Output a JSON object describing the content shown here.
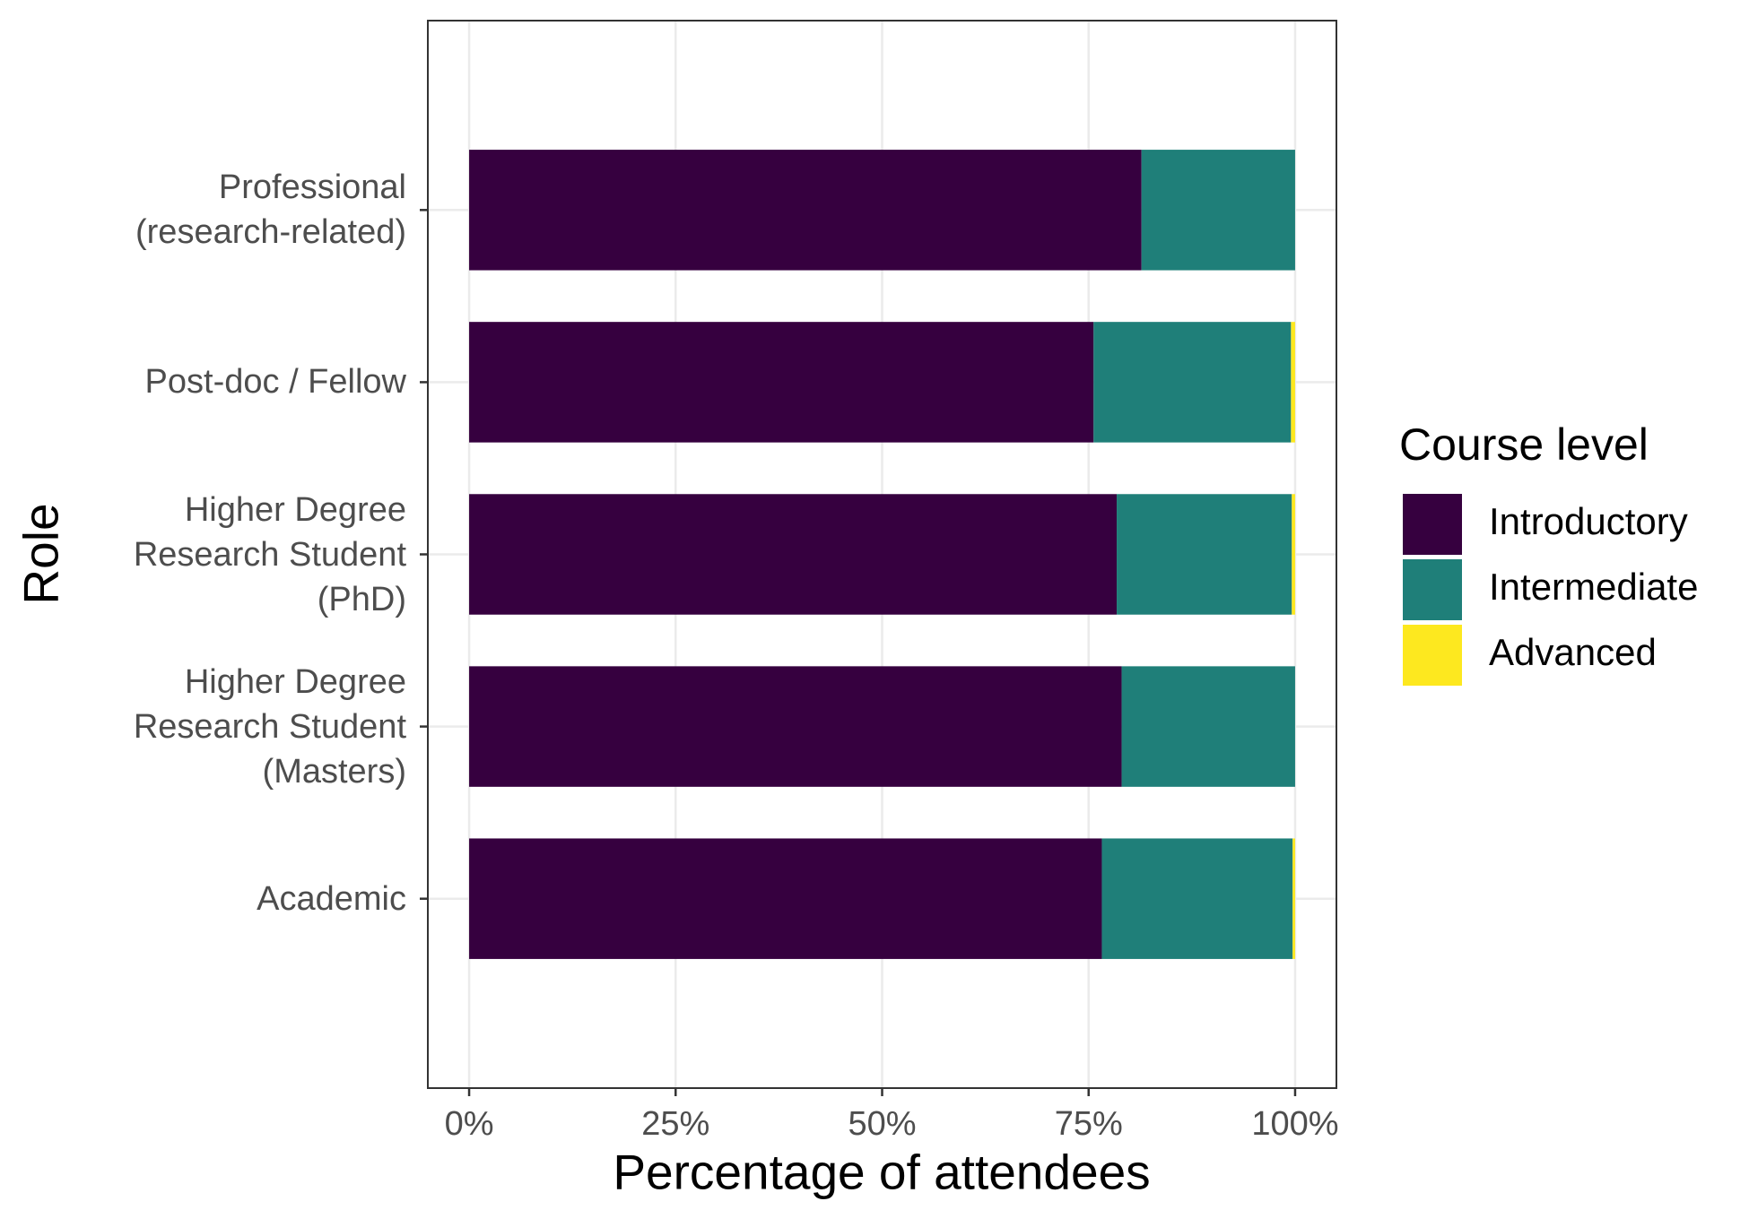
{
  "chart_data": {
    "type": "stacked-barh",
    "x_label": "Percentage of attendees",
    "y_label": "Role",
    "legend_title": "Course level",
    "categories": [
      "Professional\n(research-related)",
      "Post-doc / Fellow",
      "Higher Degree\nResearch Student\n(PhD)",
      "Higher Degree\nResearch Student\n(Masters)",
      "Academic"
    ],
    "series": [
      {
        "name": "Introductory",
        "color": "#36003f",
        "values": [
          81.4,
          75.6,
          78.4,
          79.0,
          76.6
        ]
      },
      {
        "name": "Intermediate",
        "color": "#1f7f79",
        "values": [
          18.6,
          23.9,
          21.2,
          21.0,
          23.1
        ]
      },
      {
        "name": "Advanced",
        "color": "#fde81f",
        "values": [
          0,
          0.5,
          0.4,
          0,
          0.3
        ]
      }
    ],
    "xlim": [
      -5,
      105
    ],
    "xticks": [
      {
        "value": 0,
        "label": "0%"
      },
      {
        "value": 25,
        "label": "25%"
      },
      {
        "value": 50,
        "label": "50%"
      },
      {
        "value": 75,
        "label": "75%"
      },
      {
        "value": 100,
        "label": "100%"
      }
    ],
    "grid": true
  }
}
